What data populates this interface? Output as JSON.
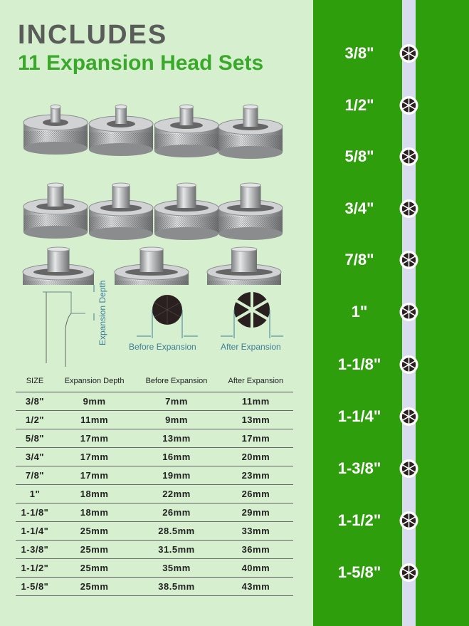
{
  "heading": {
    "line1": "INCLUDES",
    "line2": "11 Expansion Head Sets"
  },
  "diagram": {
    "depth_label": "Expansion Depth",
    "before_label": "Before Expansion",
    "after_label": "After Expansion"
  },
  "table": {
    "headers": [
      "SIZE",
      "Expansion Depth",
      "Before Expansion",
      "After Expansion"
    ],
    "rows": [
      [
        "3/8\"",
        "9mm",
        "7mm",
        "11mm"
      ],
      [
        "1/2\"",
        "11mm",
        "9mm",
        "13mm"
      ],
      [
        "5/8\"",
        "17mm",
        "13mm",
        "17mm"
      ],
      [
        "3/4\"",
        "17mm",
        "16mm",
        "20mm"
      ],
      [
        "7/8\"",
        "17mm",
        "19mm",
        "23mm"
      ],
      [
        "1\"",
        "18mm",
        "22mm",
        "26mm"
      ],
      [
        "1-1/8\"",
        "18mm",
        "26mm",
        "29mm"
      ],
      [
        "1-1/4\"",
        "25mm",
        "28.5mm",
        "33mm"
      ],
      [
        "1-3/8\"",
        "25mm",
        "31.5mm",
        "36mm"
      ],
      [
        "1-1/2\"",
        "25mm",
        "35mm",
        "40mm"
      ],
      [
        "1-5/8\"",
        "25mm",
        "38.5mm",
        "43mm"
      ]
    ]
  },
  "sidebar": {
    "sizes": [
      "3/8\"",
      "1/2\"",
      "5/8\"",
      "3/4\"",
      "7/8\"",
      "1\"",
      "1-1/8\"",
      "1-1/4\"",
      "1-3/8\"",
      "1-1/2\"",
      "1-5/8\""
    ]
  },
  "colors": {
    "panel_green": "#2f9e0c",
    "title_green": "#3aa82a",
    "background": "#d6efcf",
    "stripe": "#d9dcee"
  }
}
